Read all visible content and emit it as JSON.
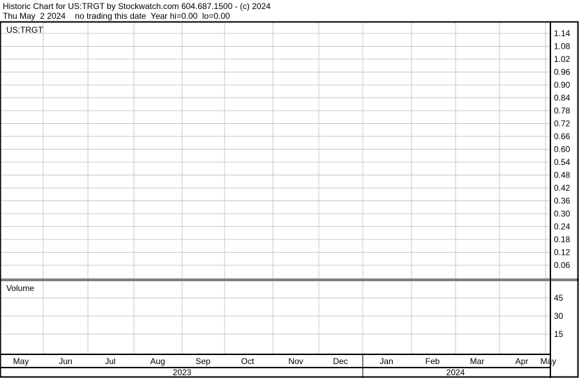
{
  "header": {
    "line1": "Historic Chart for US:TRGT by Stockwatch.com 604.687.1500 - (c) 2024",
    "line2": "Thu May  2 2024    no trading this date  Year hi=0.00  lo=0.00"
  },
  "chart_data": [
    {
      "type": "line",
      "title": "US:TRGT",
      "series": [],
      "y_ticks": [
        "1.14",
        "1.08",
        "1.02",
        "0.96",
        "0.90",
        "0.84",
        "0.78",
        "0.72",
        "0.66",
        "0.60",
        "0.54",
        "0.48",
        "0.42",
        "0.36",
        "0.30",
        "0.24",
        "0.18",
        "0.12",
        "0.06"
      ],
      "ylim": [
        0,
        1.17
      ],
      "grid": true
    },
    {
      "type": "bar",
      "title": "Volume",
      "series": [],
      "y_ticks": [
        "45",
        "30",
        "15"
      ],
      "ylim": [
        0,
        55
      ],
      "grid": true
    }
  ],
  "x_axis": {
    "months": [
      "May",
      "Jun",
      "Jul",
      "Aug",
      "Sep",
      "Oct",
      "Nov",
      "Dec",
      "Jan",
      "Feb",
      "Mar",
      "Apr",
      "May"
    ],
    "years": [
      "2023",
      "2024"
    ]
  },
  "colors": {
    "grid": "#c8c8c8",
    "border": "#000000"
  }
}
